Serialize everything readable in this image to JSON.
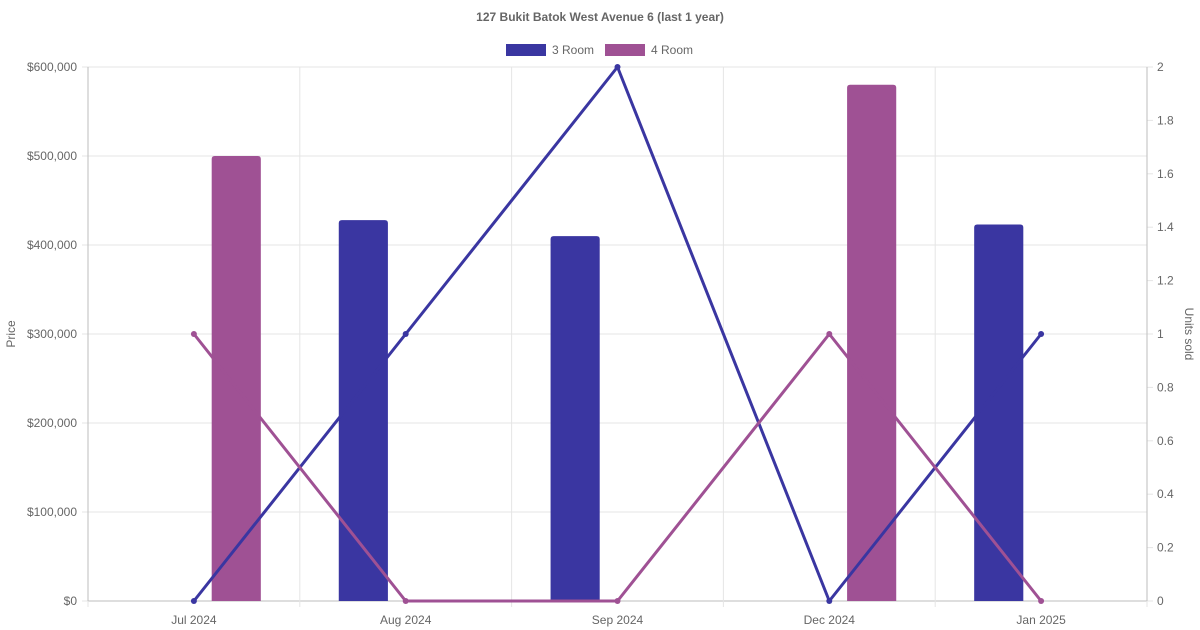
{
  "chart_data": {
    "type": "bar",
    "title": "127 Bukit Batok West Avenue 6 (last 1 year)",
    "categories": [
      "Jul 2024",
      "Aug 2024",
      "Sep 2024",
      "Dec 2024",
      "Jan 2025"
    ],
    "y_left": {
      "label": "Price",
      "range": [
        0,
        600000
      ],
      "ticks": [
        "$0",
        "$100,000",
        "$200,000",
        "$300,000",
        "$400,000",
        "$500,000",
        "$600,000"
      ]
    },
    "y_right": {
      "label": "Units sold",
      "range": [
        0,
        2
      ],
      "ticks": [
        "0",
        "0.2",
        "0.4",
        "0.6",
        "0.8",
        "1",
        "1.2",
        "1.4",
        "1.6",
        "1.8",
        "2"
      ]
    },
    "grid": true,
    "legend_position": "top",
    "series": [
      {
        "name": "3 Room",
        "color": "#3a36a1",
        "price": [
          null,
          428000,
          410000,
          null,
          423000
        ],
        "units_sold": [
          0,
          1,
          2,
          0,
          1
        ]
      },
      {
        "name": "4 Room",
        "color": "#9f5194",
        "price": [
          500000,
          null,
          null,
          580000,
          null
        ],
        "units_sold": [
          1,
          0,
          0,
          1,
          0
        ]
      }
    ]
  }
}
